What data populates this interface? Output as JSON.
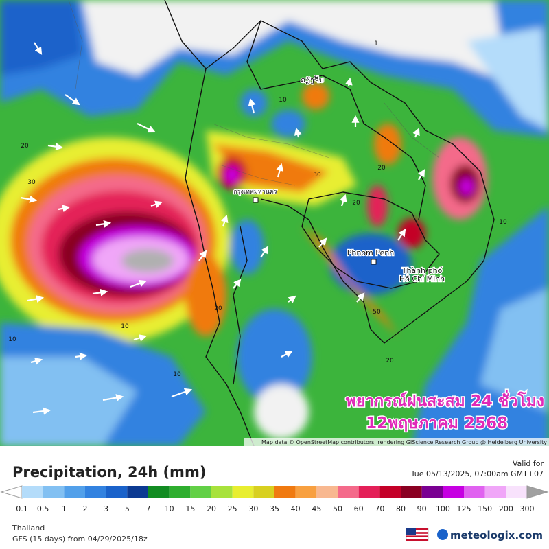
{
  "map": {
    "place_labels": [
      "ວຽງຈັນ",
      "กรุงเทพมหานคร",
      "Phnom Penh",
      "Thành phố",
      "Hồ Chí Minh"
    ],
    "contour_labels": [
      "20",
      "30",
      "10",
      "10",
      "20",
      "30",
      "20",
      "20",
      "10",
      "10",
      "50",
      "20",
      "10",
      "1"
    ],
    "overlay": [
      "พยากรณ์ฝนสะสม 24 ชั่วโมง",
      "12พฤษภาคม 2568"
    ],
    "attribution": "Map data © OpenStreetMap contributors, rendering GIScience Research Group @ Heidelberg University"
  },
  "legend": {
    "title": "Precipitation, 24h (mm)",
    "labels": [
      "0.1",
      "0.5",
      "1",
      "2",
      "3",
      "5",
      "7",
      "10",
      "15",
      "20",
      "25",
      "30",
      "35",
      "40",
      "45",
      "50",
      "60",
      "70",
      "80",
      "90",
      "100",
      "125",
      "150",
      "200",
      "300"
    ],
    "colors": [
      "#b4dcfa",
      "#82c0f2",
      "#52a0ea",
      "#3282e0",
      "#1a62ca",
      "#0c3a92",
      "#128c22",
      "#2eae2e",
      "#62d046",
      "#a8e23c",
      "#e8ee30",
      "#d8d020",
      "#f07a10",
      "#f8a040",
      "#f8b890",
      "#f46a8a",
      "#e42058",
      "#c40028",
      "#8a0022",
      "#7a0092",
      "#c600e2",
      "#e062f0",
      "#f0a6f8",
      "#f8e2fc",
      "#c8c8c8"
    ],
    "under_color": "#ffffff",
    "over_color": "#a0a0a0"
  },
  "valid": {
    "label": "Valid for",
    "time": "Tue 05/13/2025, 07:00am GMT+07"
  },
  "footer": {
    "region": "Thailand",
    "model": "GFS (15 days) from  04/29/2025/18z",
    "brand": "meteologix.com"
  }
}
